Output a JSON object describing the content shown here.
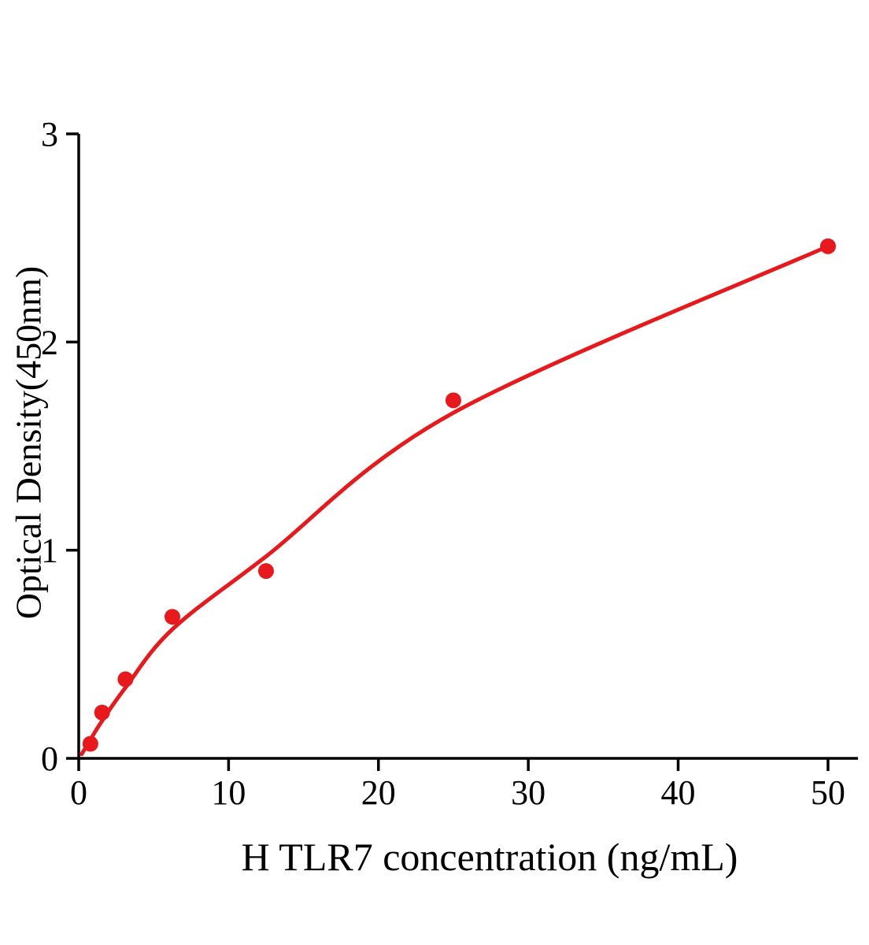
{
  "figure": {
    "background": "#ffffff",
    "axis_color": "#000000",
    "accent_color": "#e8191c"
  },
  "chart_data": {
    "type": "scatter",
    "title": "",
    "xlabel": "H TLR7 concentration (ng/mL)",
    "ylabel": "Optical Density(450nm)",
    "xlim": [
      0,
      52
    ],
    "ylim": [
      0,
      3
    ],
    "xticks": [
      0,
      10,
      20,
      30,
      40,
      50
    ],
    "yticks": [
      0,
      1,
      2,
      3
    ],
    "grid": false,
    "legend_position": "none",
    "series": [
      {
        "marker": "circle",
        "color": "#e8191c",
        "x": [
          0.78,
          1.56,
          3.12,
          6.25,
          12.5,
          25,
          50
        ],
        "y": [
          0.07,
          0.22,
          0.38,
          0.68,
          0.9,
          1.72,
          2.46
        ]
      }
    ],
    "fit_curve": {
      "color": "#e8191c",
      "points_x": [
        0.2,
        0.78,
        1.56,
        3.12,
        6.25,
        12.5,
        25,
        50
      ],
      "points_y": [
        0.02,
        0.09,
        0.18,
        0.34,
        0.62,
        0.97,
        1.66,
        2.46
      ]
    }
  }
}
